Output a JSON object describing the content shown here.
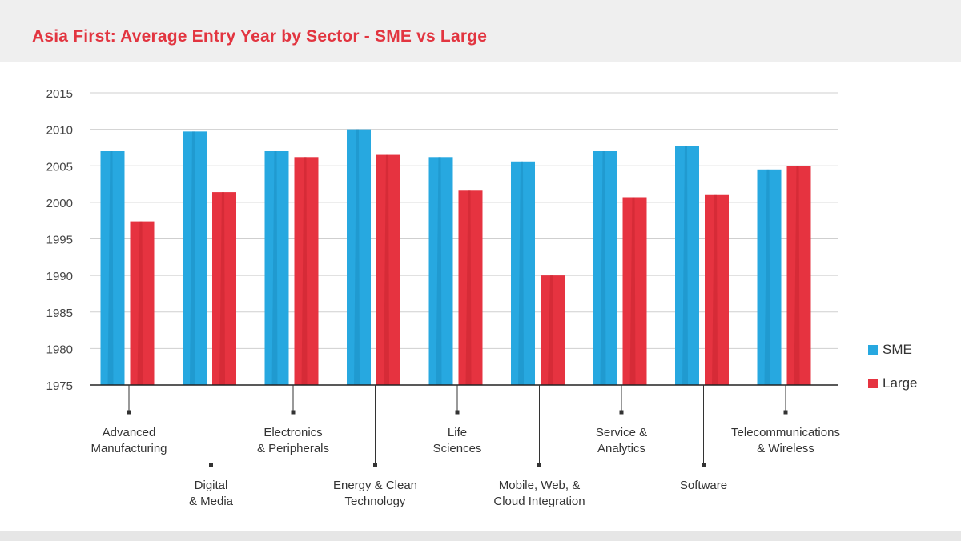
{
  "chart_data": {
    "type": "bar",
    "title": "Asia First: Average Entry Year by Sector - SME vs Large",
    "categories": [
      [
        "Advanced",
        "Manufacturing"
      ],
      [
        "Digital",
        "& Media"
      ],
      [
        "Electronics",
        "& Peripherals"
      ],
      [
        "Energy & Clean",
        "Technology"
      ],
      [
        "Life",
        "Sciences"
      ],
      [
        "Mobile, Web, &",
        "Cloud Integration"
      ],
      [
        "Service &",
        "Analytics"
      ],
      [
        "Software"
      ],
      [
        "Telecommunications",
        "& Wireless"
      ]
    ],
    "series": [
      {
        "name": "SME",
        "color": "#27a8e0",
        "values": [
          2007.0,
          2009.7,
          2007.0,
          2010.0,
          2006.2,
          2005.6,
          2007.0,
          2007.7,
          2004.5
        ]
      },
      {
        "name": "Large",
        "color": "#e63340",
        "values": [
          1997.4,
          2001.4,
          2006.2,
          2006.5,
          2001.6,
          1990.0,
          2000.7,
          2001.0,
          2005.0
        ]
      }
    ],
    "ylim": [
      1975,
      2015
    ],
    "yticks": [
      2015,
      2010,
      2005,
      2000,
      1995,
      1990,
      1985,
      1980,
      1975
    ],
    "grid": true,
    "legend_position": "right"
  }
}
